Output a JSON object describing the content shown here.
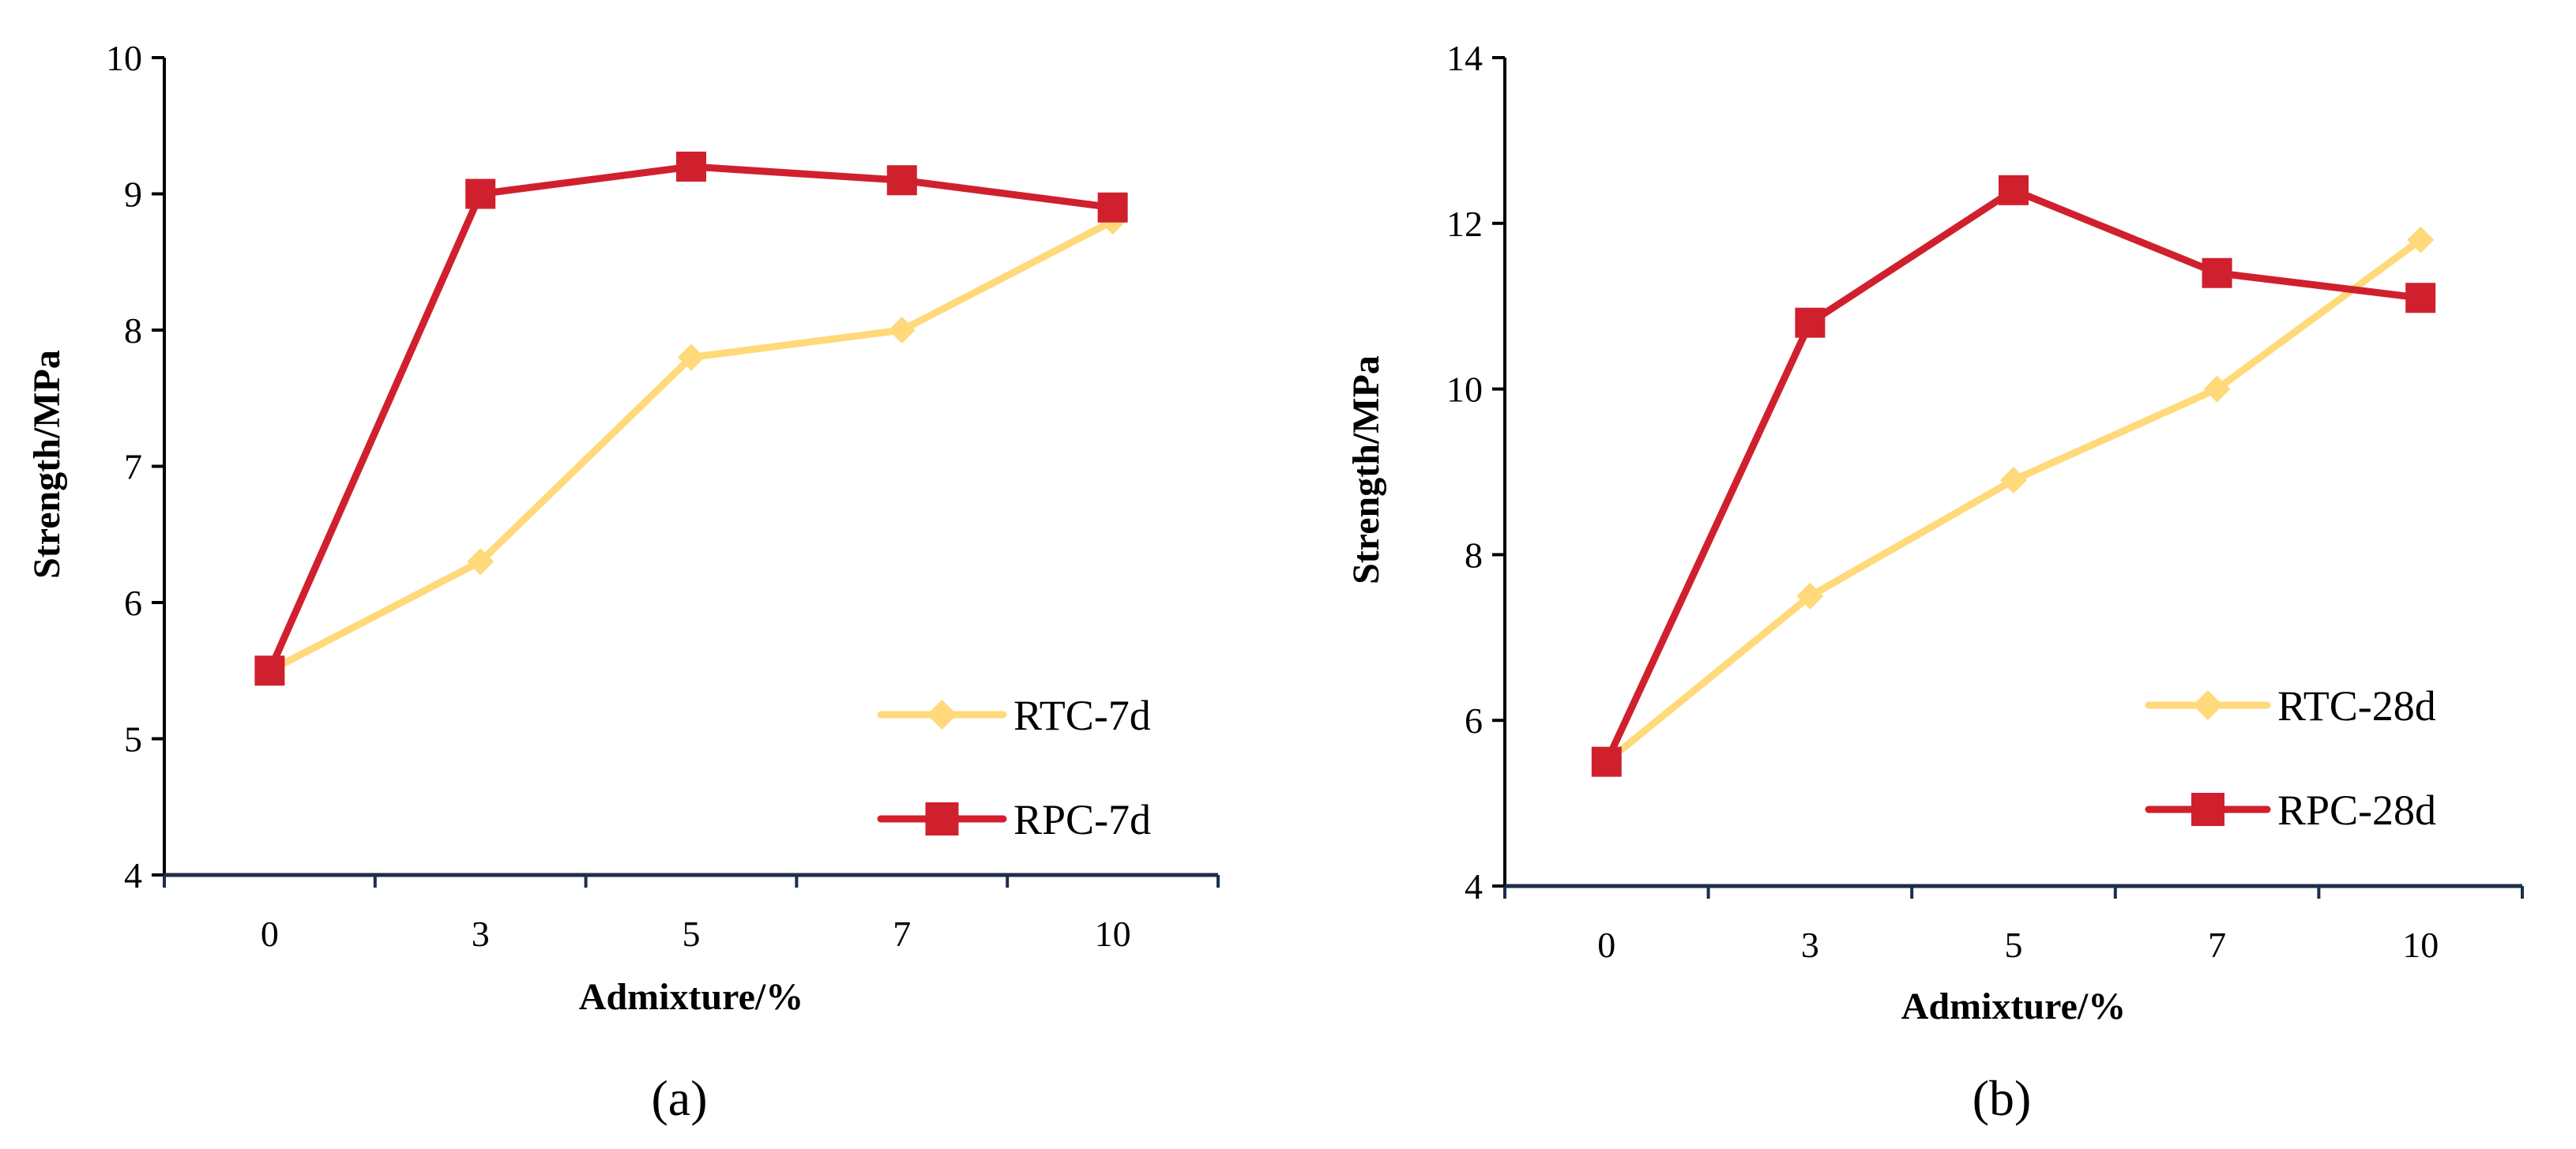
{
  "chart_data": [
    {
      "type": "line",
      "panel_label": "(a)",
      "categories": [
        "0",
        "3",
        "5",
        "7",
        "10"
      ],
      "xlabel": "Admixture/%",
      "ylabel": "Strength/MPa",
      "ylim": [
        4,
        10
      ],
      "yticks": [
        "4",
        "5",
        "6",
        "7",
        "8",
        "9",
        "10"
      ],
      "grid": false,
      "legend_position": "bottom-right",
      "series": [
        {
          "name": "RTC-7d",
          "color": "#FFD97A",
          "marker": "diamond",
          "values": [
            5.5,
            6.3,
            7.8,
            8.0,
            8.8
          ]
        },
        {
          "name": "RPC-7d",
          "color": "#D0202E",
          "marker": "square",
          "values": [
            5.5,
            9.0,
            9.2,
            9.1,
            8.9
          ]
        }
      ]
    },
    {
      "type": "line",
      "panel_label": "(b)",
      "categories": [
        "0",
        "3",
        "5",
        "7",
        "10"
      ],
      "xlabel": "Admixture/%",
      "ylabel": "Strength/MPa",
      "ylim": [
        4,
        14
      ],
      "yticks": [
        "4",
        "6",
        "8",
        "10",
        "12",
        "14"
      ],
      "grid": false,
      "legend_position": "bottom-right",
      "series": [
        {
          "name": "RTC-28d",
          "color": "#FFD97A",
          "marker": "diamond",
          "values": [
            5.5,
            7.5,
            8.9,
            10.0,
            11.8
          ]
        },
        {
          "name": "RPC-28d",
          "color": "#D0202E",
          "marker": "square",
          "values": [
            5.5,
            10.8,
            12.4,
            11.4,
            11.1
          ]
        }
      ]
    }
  ]
}
